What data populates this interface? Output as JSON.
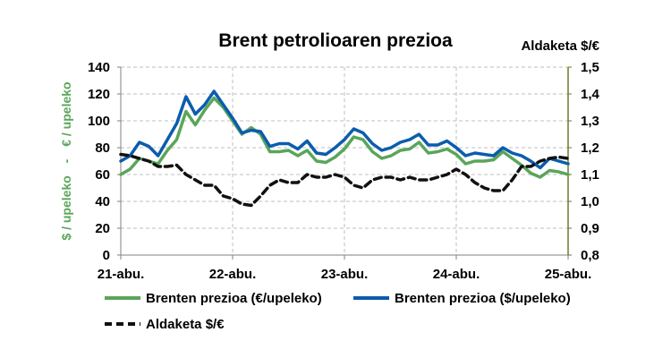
{
  "chart_data": {
    "type": "line",
    "title": "Brent petrolioaren prezioa",
    "y_left_label_parts": [
      "$ / upeleko",
      "-",
      "€ / upeleko"
    ],
    "y_right_label": "Aldaketa $/€",
    "x_ticks": [
      "21-abu.",
      "22-abu.",
      "23-abu.",
      "24-abu.",
      "25-abu."
    ],
    "y_left_ticks": [
      "0",
      "20",
      "40",
      "60",
      "80",
      "100",
      "120",
      "140"
    ],
    "y_right_ticks": [
      "0,8",
      "0,9",
      "1,0",
      "1,1",
      "1,2",
      "1,3",
      "1,4",
      "1,5"
    ],
    "y_left_range": [
      0,
      140
    ],
    "y_right_range": [
      0.8,
      1.5
    ],
    "grid": true,
    "legend_position": "bottom",
    "colors": {
      "eur": "#5aa55a",
      "usd": "#0b5cad",
      "fx": "#111111",
      "grid": "#bfbfbf",
      "left_axis_title": "#5aa55a",
      "right_axis": "#6b7d2a"
    },
    "series": [
      {
        "name": "Brenten prezioa (€/upeleko)",
        "axis": "left",
        "style": "solid",
        "values": [
          60,
          64,
          72,
          70,
          68,
          78,
          86,
          107,
          97,
          108,
          117,
          110,
          100,
          90,
          95,
          90,
          77,
          77,
          78,
          74,
          78,
          70,
          69,
          73,
          79,
          88,
          86,
          77,
          72,
          74,
          78,
          79,
          84,
          76,
          77,
          79,
          75,
          68,
          70,
          70,
          71,
          77,
          72,
          67,
          61,
          58,
          63,
          62,
          60
        ]
      },
      {
        "name": "Brenten prezioa ($/upeleko)",
        "axis": "left",
        "style": "solid",
        "values": [
          70,
          74,
          84,
          81,
          74,
          86,
          98,
          118,
          105,
          112,
          122,
          112,
          102,
          91,
          93,
          92,
          81,
          83,
          83,
          79,
          85,
          76,
          75,
          80,
          86,
          94,
          91,
          83,
          78,
          80,
          84,
          86,
          90,
          82,
          82,
          85,
          80,
          74,
          76,
          75,
          74,
          80,
          76,
          74,
          70,
          65,
          72,
          70,
          68
        ]
      },
      {
        "name": "Aldaketa $/€",
        "axis": "right",
        "style": "dashed",
        "values": [
          1.175,
          1.17,
          1.16,
          1.15,
          1.13,
          1.13,
          1.135,
          1.1,
          1.08,
          1.06,
          1.06,
          1.02,
          1.01,
          0.99,
          0.985,
          1.02,
          1.06,
          1.08,
          1.07,
          1.07,
          1.1,
          1.09,
          1.09,
          1.1,
          1.09,
          1.06,
          1.05,
          1.08,
          1.09,
          1.09,
          1.08,
          1.09,
          1.08,
          1.08,
          1.09,
          1.1,
          1.12,
          1.1,
          1.07,
          1.05,
          1.04,
          1.04,
          1.08,
          1.13,
          1.13,
          1.15,
          1.16,
          1.165,
          1.16
        ]
      }
    ]
  }
}
